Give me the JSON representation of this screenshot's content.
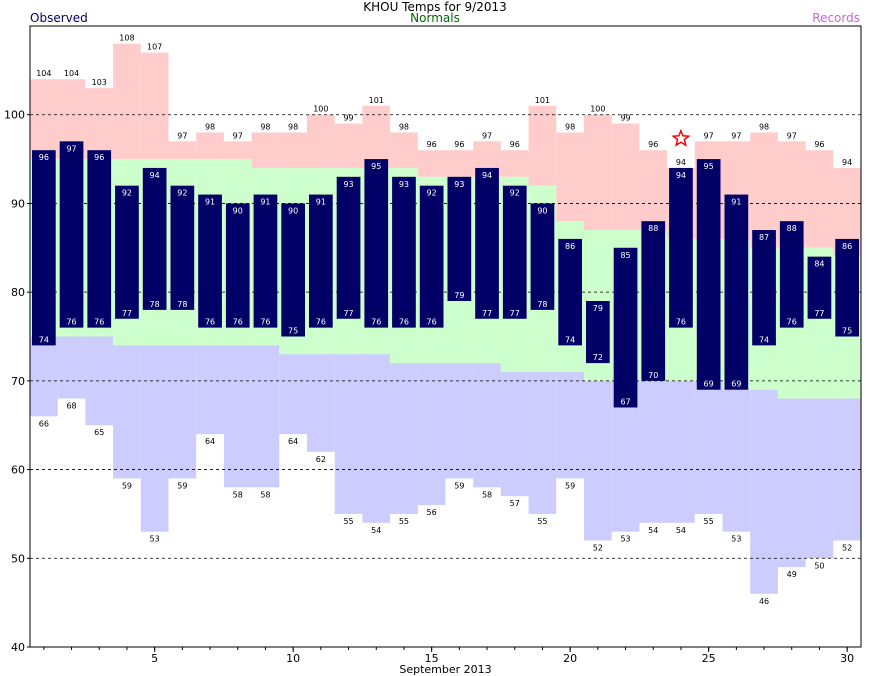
{
  "title": "KHOU Temps for 9/2013",
  "legend": {
    "observed": "Observed",
    "normals": "Normals",
    "records": "Records"
  },
  "colors": {
    "observed": "#000066",
    "normal_band": "#ccffcc",
    "record_high_band": "#ffcccc",
    "record_low_band": "#ccccff",
    "normals_text": "#006600",
    "records_text": "#cc66cc",
    "star": "#ff0000"
  },
  "chart_data": {
    "type": "bar",
    "xlabel": "September 2013",
    "ylabel": "",
    "ylim": [
      40,
      110
    ],
    "xlim": [
      0.5,
      30.5
    ],
    "yticks": [
      40,
      50,
      60,
      70,
      80,
      90,
      100
    ],
    "xticks": [
      5,
      10,
      15,
      20,
      25,
      30
    ],
    "grid": "dashed at 50, 60, 70, 80, 90, 100",
    "days": [
      1,
      2,
      3,
      4,
      5,
      6,
      7,
      8,
      9,
      10,
      11,
      12,
      13,
      14,
      15,
      16,
      17,
      18,
      19,
      20,
      21,
      22,
      23,
      24,
      25,
      26,
      27,
      28,
      29,
      30
    ],
    "series": [
      {
        "name": "Observed",
        "kind": "high",
        "values": [
          96,
          97,
          96,
          92,
          94,
          92,
          91,
          90,
          91,
          90,
          91,
          93,
          95,
          93,
          92,
          93,
          94,
          92,
          90,
          86,
          79,
          85,
          88,
          94,
          95,
          91,
          87,
          88,
          84,
          86
        ]
      },
      {
        "name": "Observed",
        "kind": "low",
        "values": [
          74,
          76,
          76,
          77,
          78,
          78,
          76,
          76,
          76,
          75,
          76,
          77,
          76,
          76,
          76,
          79,
          77,
          77,
          78,
          74,
          72,
          67,
          70,
          76,
          69,
          69,
          74,
          76,
          77,
          75
        ]
      },
      {
        "name": "Normals",
        "kind": "high",
        "values": [
          95,
          95,
          95,
          95,
          95,
          95,
          95,
          95,
          94,
          94,
          94,
          94,
          94,
          94,
          93,
          93,
          93,
          93,
          92,
          88,
          87,
          87,
          87,
          86,
          86,
          86,
          85,
          85,
          85,
          84
        ]
      },
      {
        "name": "Normals",
        "kind": "low",
        "values": [
          75,
          75,
          75,
          74,
          74,
          74,
          74,
          74,
          74,
          73,
          73,
          73,
          73,
          72,
          72,
          72,
          72,
          71,
          71,
          71,
          70,
          70,
          70,
          70,
          70,
          69,
          69,
          68,
          68,
          68
        ]
      },
      {
        "name": "Records",
        "kind": "high",
        "values": [
          104,
          104,
          103,
          108,
          107,
          97,
          98,
          97,
          98,
          98,
          100,
          99,
          101,
          98,
          96,
          96,
          97,
          96,
          101,
          98,
          100,
          99,
          96,
          94,
          97,
          97,
          98,
          97,
          96,
          94
        ]
      },
      {
        "name": "Records",
        "kind": "low",
        "values": [
          66,
          68,
          65,
          59,
          53,
          59,
          64,
          58,
          58,
          64,
          62,
          55,
          54,
          55,
          56,
          59,
          58,
          57,
          55,
          59,
          52,
          53,
          54,
          54,
          55,
          53,
          46,
          49,
          50,
          52
        ]
      }
    ],
    "annotations": [
      {
        "type": "star",
        "day": 24,
        "value": 97.3,
        "meaning": "record high tied/broken"
      }
    ]
  }
}
